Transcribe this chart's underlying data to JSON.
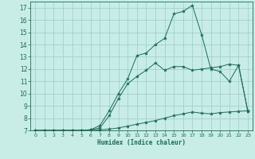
{
  "title": "",
  "xlabel": "Humidex (Indice chaleur)",
  "xlim": [
    -0.5,
    23.5
  ],
  "ylim": [
    7,
    17.5
  ],
  "xticks": [
    0,
    1,
    2,
    3,
    4,
    5,
    6,
    7,
    8,
    9,
    10,
    11,
    12,
    13,
    14,
    15,
    16,
    17,
    18,
    19,
    20,
    21,
    22,
    23
  ],
  "yticks": [
    7,
    8,
    9,
    10,
    11,
    12,
    13,
    14,
    15,
    16,
    17
  ],
  "bg_color": "#c8ece6",
  "line_color": "#1a6b5a",
  "grid_color": "#99cccc",
  "line1_x": [
    0,
    1,
    2,
    3,
    4,
    5,
    6,
    7,
    8,
    9,
    10,
    11,
    12,
    13,
    14,
    15,
    16,
    17,
    18,
    19,
    20,
    21,
    22,
    23
  ],
  "line1_y": [
    7.0,
    7.0,
    7.0,
    7.0,
    7.0,
    7.0,
    7.0,
    7.05,
    7.1,
    7.2,
    7.35,
    7.5,
    7.65,
    7.8,
    8.0,
    8.2,
    8.35,
    8.5,
    8.4,
    8.35,
    8.45,
    8.5,
    8.55,
    8.6
  ],
  "line2_x": [
    0,
    1,
    2,
    3,
    4,
    5,
    6,
    7,
    8,
    9,
    10,
    11,
    12,
    13,
    14,
    15,
    16,
    17,
    18,
    19,
    20,
    21,
    22,
    23
  ],
  "line2_y": [
    7.0,
    7.0,
    7.0,
    7.0,
    7.0,
    7.0,
    7.05,
    7.2,
    8.2,
    9.6,
    10.8,
    11.4,
    11.9,
    12.5,
    11.9,
    12.2,
    12.2,
    11.9,
    12.0,
    12.1,
    12.2,
    12.4,
    12.3,
    8.55
  ],
  "line3_x": [
    0,
    1,
    2,
    3,
    4,
    5,
    6,
    7,
    8,
    9,
    10,
    11,
    12,
    13,
    14,
    15,
    16,
    17,
    18,
    19,
    20,
    21,
    22,
    23
  ],
  "line3_y": [
    7.0,
    7.0,
    7.0,
    7.0,
    7.0,
    7.0,
    7.05,
    7.4,
    8.6,
    10.0,
    11.2,
    13.1,
    13.3,
    14.0,
    14.5,
    16.5,
    16.7,
    17.2,
    14.8,
    12.0,
    11.8,
    11.0,
    12.3,
    8.55
  ]
}
